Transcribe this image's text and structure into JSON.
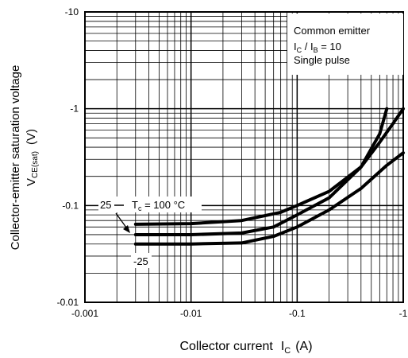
{
  "chart_data": {
    "type": "line",
    "scale": "log-log",
    "grid": true,
    "xlabel": "Collector current",
    "xlabel_symbol": "I",
    "xlabel_sub": "C",
    "xlabel_unit": "(A)",
    "ylabel": "Collector-emitter saturation voltage",
    "ylabel_symbol": "V",
    "ylabel_sub": "CE(sat)",
    "ylabel_unit": "(V)",
    "xlim": [
      -0.001,
      -1
    ],
    "ylim": [
      -0.01,
      -10
    ],
    "x_ticks": [
      "-0.001",
      "-0.01",
      "-0.1",
      "-1"
    ],
    "y_ticks": [
      "-0.01",
      "-0.1",
      "-1",
      "-10"
    ],
    "legend_position": "top-right",
    "legend": {
      "line1": "Common emitter",
      "line2_sym": "I",
      "line2_sub": "C",
      "line2_mid": " / I",
      "line2_sub2": "B",
      "line2_end": " = 10",
      "line3": "Single pulse"
    },
    "annotations": {
      "label_25": "25",
      "tc_sym": "T",
      "tc_sub": "c",
      "tc_value": " = 100 °C",
      "label_m25": "-25"
    },
    "series": [
      {
        "name": "100 °C",
        "x": [
          -0.003,
          -0.01,
          -0.03,
          -0.07,
          -0.1,
          -0.2,
          -0.4,
          -0.6,
          -0.8,
          -1.0
        ],
        "y": [
          -0.064,
          -0.065,
          -0.07,
          -0.085,
          -0.1,
          -0.14,
          -0.25,
          -0.45,
          -0.7,
          -1.0
        ]
      },
      {
        "name": "25 °C",
        "x": [
          -0.003,
          -0.01,
          -0.03,
          -0.06,
          -0.1,
          -0.2,
          -0.4,
          -0.6,
          -0.7
        ],
        "y": [
          -0.05,
          -0.05,
          -0.052,
          -0.06,
          -0.08,
          -0.12,
          -0.25,
          -0.55,
          -1.0
        ]
      },
      {
        "name": "-25 °C",
        "x": [
          -0.003,
          -0.01,
          -0.03,
          -0.06,
          -0.1,
          -0.2,
          -0.4,
          -0.7,
          -1.0
        ],
        "y": [
          -0.04,
          -0.04,
          -0.041,
          -0.048,
          -0.06,
          -0.09,
          -0.15,
          -0.26,
          -0.35
        ]
      }
    ]
  }
}
